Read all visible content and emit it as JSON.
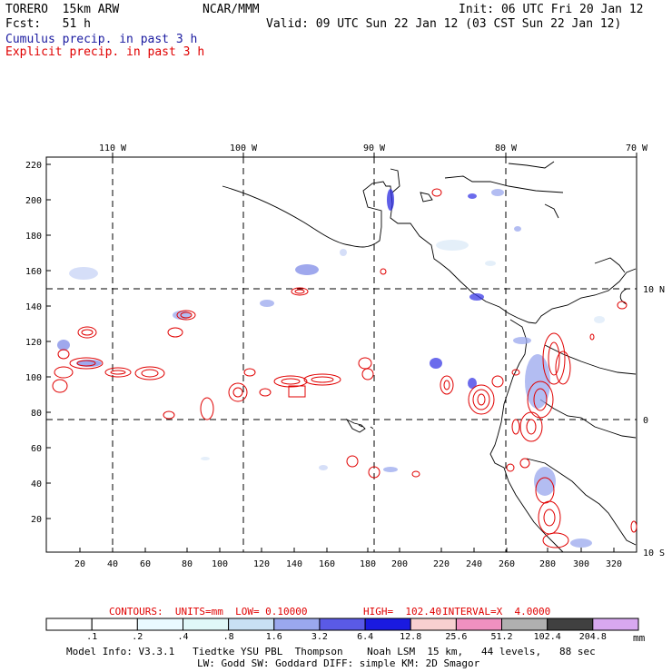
{
  "header": {
    "model": "TORERO  15km ARW",
    "org": "NCAR/MMM",
    "init": "Init: 06 UTC Fri 20 Jan 12",
    "fcst": "Fcst:   51 h",
    "valid": "Valid: 09 UTC Sun 22 Jan 12 (03 CST Sun 22 Jan 12)",
    "field1": "Cumulus precip. in past 3 h",
    "field2": "Explicit precip. in past 3 h",
    "field1_color": "#1a1aa0",
    "field2_color": "#e00000"
  },
  "map": {
    "top_lon_labels": [
      "110 W",
      "100 W",
      "90 W",
      "80 W",
      "70 W"
    ],
    "right_lat_labels": [
      "10 N",
      "0",
      "10 S"
    ],
    "y_ticks": [
      "220",
      "200",
      "180",
      "160",
      "140",
      "120",
      "100",
      "80",
      "60",
      "40",
      "20"
    ],
    "x_ticks": [
      "20",
      "40",
      "60",
      "80",
      "100",
      "120",
      "140",
      "160",
      "180",
      "200",
      "220",
      "240",
      "260",
      "280",
      "300",
      "320"
    ]
  },
  "contours_info": {
    "label": "CONTOURS:  UNITS=mm  LOW= 0.10000",
    "high": "HIGH=  102.40",
    "interval": "INTERVAL=X  4.0000"
  },
  "colorbar": {
    "labels": [
      ".1",
      ".2",
      ".4",
      ".8",
      "1.6",
      "3.2",
      "6.4",
      "12.8",
      "25.6",
      "51.2",
      "102.4",
      "204.8"
    ],
    "unit": "mm",
    "colors": [
      "#ffffff",
      "#ffffff",
      "#eafaff",
      "#e0f8f8",
      "#c8e0f4",
      "#9aa8ee",
      "#5a5ae6",
      "#1a1ae0",
      "#f8d0d0",
      "#f090c0",
      "#b0b0b0",
      "#404040",
      "#d8a8f0"
    ]
  },
  "footer": {
    "line1": "Model Info: V3.3.1   Tiedtke YSU PBL  Thompson    Noah LSM  15 km,   44 levels,   88 sec",
    "line2": "LW: Godd SW: Goddard DIFF: simple KM: 2D Smagor"
  }
}
